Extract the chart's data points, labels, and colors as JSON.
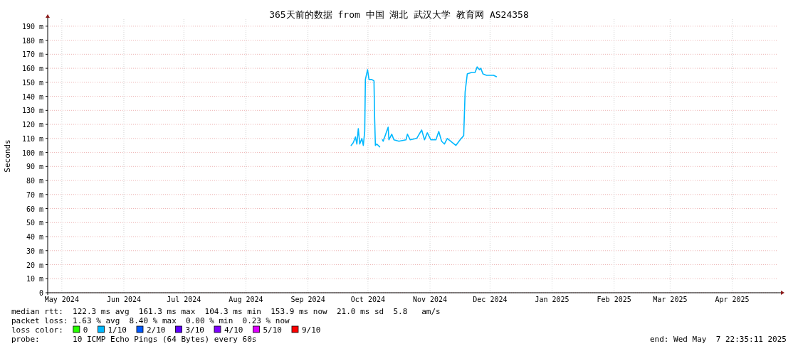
{
  "chart_data": {
    "type": "line",
    "title": "365天前的数据 from 中国 湖北 武汉大学 教育网 AS24358",
    "ylabel": "Seconds",
    "legend_title": "loss color:",
    "xlim": [
      "2024-05-07T22:35",
      "2025-05-07T22:35"
    ],
    "xticks": [
      {
        "value": "2024-05-15",
        "label": "May 2024"
      },
      {
        "value": "2024-06-15",
        "label": "Jun 2024"
      },
      {
        "value": "2024-07-15",
        "label": "Jul 2024"
      },
      {
        "value": "2024-08-15",
        "label": "Aug 2024"
      },
      {
        "value": "2024-09-15",
        "label": "Sep 2024"
      },
      {
        "value": "2024-10-15",
        "label": "Oct 2024"
      },
      {
        "value": "2024-11-15",
        "label": "Nov 2024"
      },
      {
        "value": "2024-12-15",
        "label": "Dec 2024"
      },
      {
        "value": "2025-01-15",
        "label": "Jan 2025"
      },
      {
        "value": "2025-02-15",
        "label": "Feb 2025"
      },
      {
        "value": "2025-03-15",
        "label": "Mar 2025"
      },
      {
        "value": "2025-04-15",
        "label": "Apr 2025"
      }
    ],
    "ylim": [
      0,
      195
    ],
    "yticks": [
      0,
      {
        "value": 10,
        "label": "10 m"
      },
      {
        "value": 20,
        "label": "20 m"
      },
      {
        "value": 30,
        "label": "30 m"
      },
      {
        "value": 40,
        "label": "40 m"
      },
      {
        "value": 50,
        "label": "50 m"
      },
      {
        "value": 60,
        "label": "60 m"
      },
      {
        "value": 70,
        "label": "70 m"
      },
      {
        "value": 80,
        "label": "80 m"
      },
      {
        "value": 90,
        "label": "90 m"
      },
      {
        "value": 100,
        "label": "100 m"
      },
      {
        "value": 110,
        "label": "110 m"
      },
      {
        "value": 120,
        "label": "120 m"
      },
      {
        "value": 130,
        "label": "130 m"
      },
      {
        "value": 140,
        "label": "140 m"
      },
      {
        "value": 150,
        "label": "150 m"
      },
      {
        "value": 160,
        "label": "160 m"
      },
      {
        "value": 170,
        "label": "170 m"
      },
      {
        "value": 180,
        "label": "180 m"
      },
      {
        "value": 190,
        "label": "190 m"
      }
    ],
    "grid": true,
    "legend": "bottom left",
    "x": [
      "2024-10-06T14:00",
      "2024-10-07T16:00",
      "2024-10-08T18:00",
      "2024-10-09T11:00",
      "2024-10-10T04:00",
      "2024-10-10T21:00",
      "2024-10-11T23:00",
      "2024-10-12T16:00",
      "2024-10-13T09:00",
      "2024-10-13T17:00",
      "2024-10-14T19:00",
      "2024-10-15T12:00",
      "2024-10-16T22:00",
      "2024-10-18T00:00",
      "2024-10-18T08:00",
      "2024-10-18T17:00",
      "2024-10-19T10:00",
      "2024-10-20T20:00",
      "2024-10-21T12:00",
      "2024-10-22T06:00",
      "2024-10-22T15:00",
      "2024-10-25T02:00",
      "2024-10-25T11:00",
      "2024-10-26T21:00",
      "2024-10-27T23:00",
      "2024-10-30T11:00",
      "2024-11-03T00:00",
      "2024-11-03T17:00",
      "2024-11-05T03:00",
      "2024-11-08T08:00",
      "2024-11-10T20:00",
      "2024-11-12T06:00",
      "2024-11-13T16:00",
      "2024-11-15T11:00",
      "2024-11-17T23:00",
      "2024-11-19T09:00",
      "2024-11-20T19:00",
      "2024-11-22T05:00",
      "2024-11-23T15:00",
      "2024-11-27T22:00",
      "2024-11-30T01:00",
      "2024-12-01T20:00",
      "2024-12-02T13:00",
      "2024-12-03T15:00",
      "2024-12-05T18:00",
      "2024-12-07T12:00",
      "2024-12-08T14:00",
      "2024-12-09T16:00",
      "2024-12-10T09:00",
      "2024-12-11T11:00",
      "2024-12-13T05:00",
      "2024-12-15T00:00",
      "2024-12-16T19:00",
      "2024-12-18T05:00"
    ],
    "series": [
      {
        "name": "0",
        "color": "#26ff00",
        "values": [
          null,
          null,
          null,
          null,
          null,
          null,
          null,
          null,
          null,
          null,
          null,
          null,
          null,
          null,
          null,
          null,
          null,
          null,
          null,
          null,
          null,
          null,
          null,
          null,
          null,
          null,
          null,
          null,
          null,
          null,
          null,
          null,
          null,
          null,
          null,
          null,
          null,
          null,
          null,
          null,
          null,
          null,
          null,
          null,
          null,
          null,
          null,
          null,
          null,
          null,
          null,
          null,
          null,
          null
        ]
      },
      {
        "name": "1/10",
        "color": "#00b8ff",
        "values": [
          105,
          107,
          111,
          106,
          117,
          106,
          110,
          105,
          115,
          152,
          159,
          152,
          152,
          151,
          124,
          105,
          106,
          104,
          null,
          109,
          108,
          118,
          109,
          113,
          109,
          108,
          109,
          113,
          109,
          110,
          116,
          109,
          114,
          109,
          109,
          115,
          108,
          106,
          110,
          105,
          109,
          112,
          143,
          156,
          157,
          157,
          161,
          159,
          160,
          156,
          155,
          155,
          155,
          154
        ]
      },
      {
        "name": "2/10",
        "color": "#0059ff",
        "values": [
          null,
          null,
          null,
          null,
          null,
          null,
          null,
          null,
          null,
          null,
          null,
          null,
          null,
          null,
          null,
          null,
          null,
          null,
          null,
          null,
          null,
          null,
          null,
          null,
          null,
          null,
          null,
          null,
          null,
          null,
          null,
          null,
          null,
          null,
          null,
          null,
          null,
          null,
          null,
          null,
          null,
          null,
          null,
          null,
          null,
          null,
          null,
          null,
          null,
          null,
          null,
          null,
          null,
          null
        ]
      },
      {
        "name": "3/10",
        "color": "#5e00ff",
        "values": [
          null,
          null,
          null,
          null,
          null,
          null,
          null,
          null,
          null,
          null,
          null,
          null,
          null,
          null,
          null,
          null,
          null,
          null,
          null,
          null,
          null,
          null,
          null,
          null,
          null,
          null,
          null,
          null,
          null,
          null,
          null,
          null,
          null,
          null,
          null,
          null,
          null,
          null,
          null,
          null,
          null,
          null,
          null,
          null,
          null,
          null,
          null,
          null,
          null,
          null,
          null,
          null,
          null,
          null
        ]
      },
      {
        "name": "4/10",
        "color": "#7e00ff",
        "values": [
          null,
          null,
          null,
          null,
          null,
          null,
          null,
          null,
          null,
          null,
          null,
          null,
          null,
          null,
          null,
          null,
          null,
          null,
          null,
          null,
          null,
          null,
          null,
          null,
          null,
          null,
          null,
          null,
          null,
          null,
          null,
          null,
          null,
          null,
          null,
          null,
          null,
          null,
          null,
          null,
          null,
          null,
          null,
          null,
          null,
          null,
          null,
          null,
          null,
          null,
          null,
          null,
          null,
          null
        ]
      },
      {
        "name": "5/10",
        "color": "#dd00ff",
        "values": [
          null,
          null,
          null,
          null,
          null,
          null,
          null,
          null,
          null,
          null,
          null,
          null,
          null,
          null,
          null,
          null,
          null,
          null,
          null,
          null,
          null,
          null,
          null,
          null,
          null,
          null,
          null,
          null,
          null,
          null,
          null,
          null,
          null,
          null,
          null,
          null,
          null,
          null,
          null,
          null,
          null,
          null,
          null,
          null,
          null,
          null,
          null,
          null,
          null,
          null,
          null,
          null,
          null,
          null
        ]
      },
      {
        "name": "9/10",
        "color": "#ff0000",
        "values": [
          null,
          null,
          null,
          null,
          null,
          null,
          null,
          null,
          null,
          null,
          null,
          null,
          null,
          null,
          null,
          null,
          null,
          null,
          null,
          null,
          null,
          null,
          null,
          null,
          null,
          null,
          null,
          null,
          null,
          null,
          null,
          null,
          null,
          null,
          null,
          null,
          null,
          null,
          null,
          null,
          null,
          null,
          null,
          null,
          null,
          null,
          null,
          null,
          null,
          null,
          null,
          null,
          null,
          null
        ]
      }
    ],
    "annotations": [
      "median rtt:  122.3 ms avg  161.3 ms max  104.3 ms min  153.9 ms now  21.0 ms sd  5.8   am/s",
      "packet loss: 1.63 % avg  8.40 % max  0.00 % min  0.23 % now",
      "probe:       10 ICMP Echo Pings (64 Bytes) every 60s",
      "end: Wed May  7 22:35:11 2025"
    ]
  }
}
